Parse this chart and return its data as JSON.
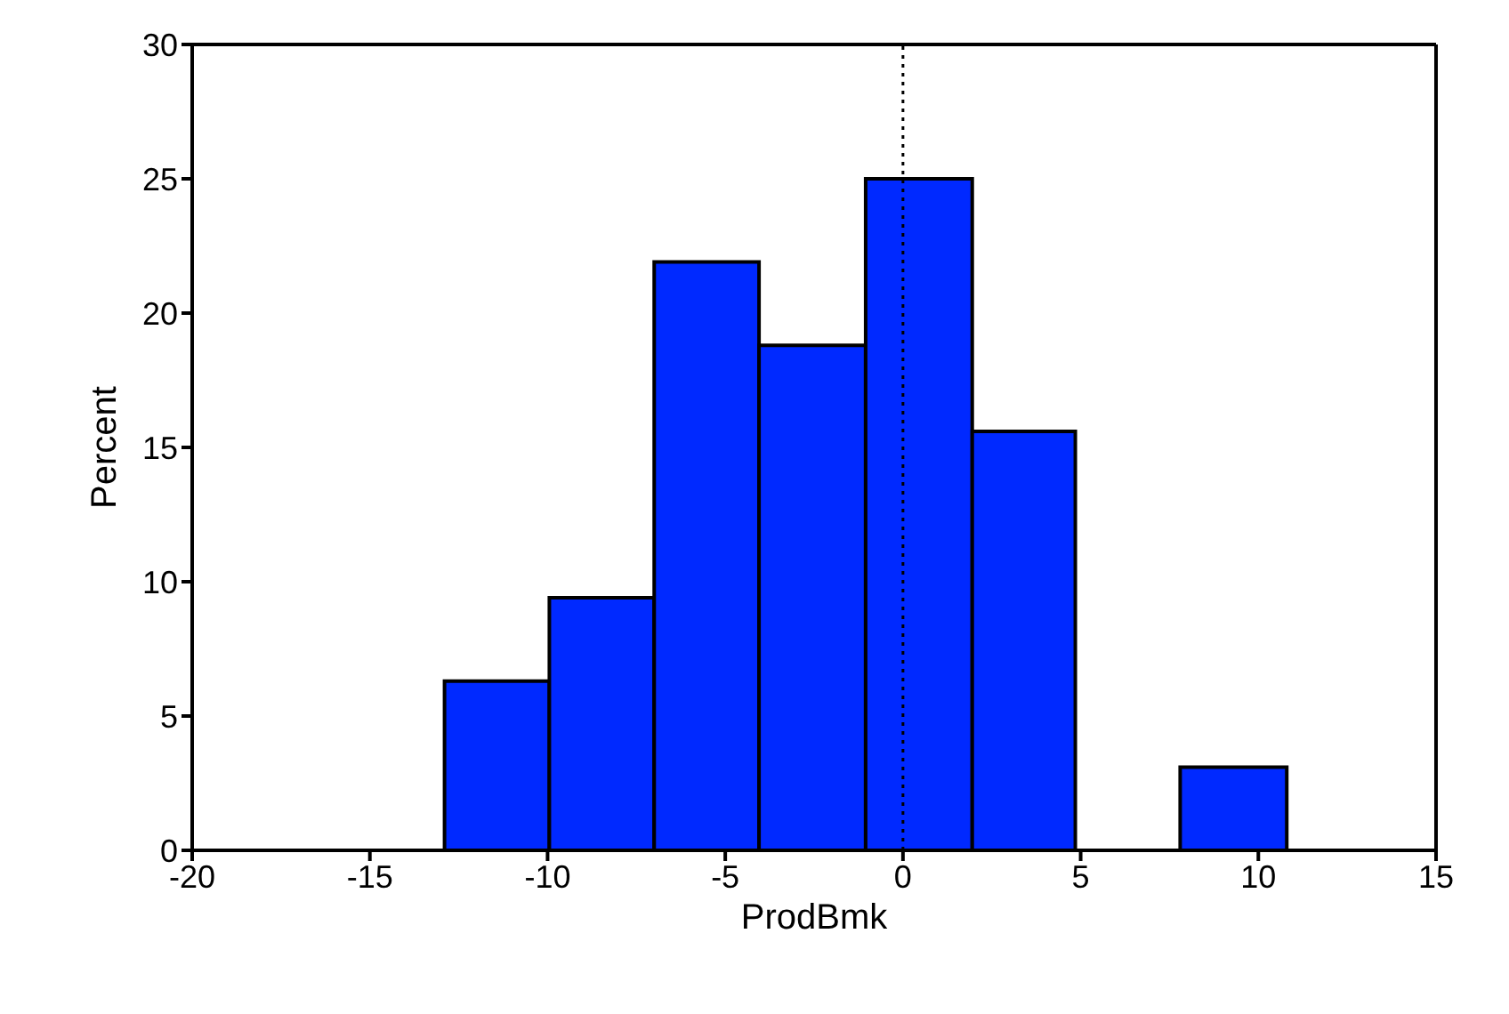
{
  "chart_data": {
    "type": "histogram",
    "xlabel": "ProdBmk",
    "ylabel": "Percent",
    "bins": [
      -12.9,
      -9.95,
      -7,
      -4.05,
      -1.05,
      1.95,
      4.85,
      7.8,
      10.8
    ],
    "values": [
      6.3,
      9.4,
      21.9,
      18.8,
      25,
      15.6,
      0,
      3.1
    ],
    "color": "#0029ff",
    "xlim": [
      -20,
      15
    ],
    "xticks": [
      -20,
      -15,
      -10,
      -5,
      0,
      5,
      10,
      15
    ],
    "ylim": [
      0,
      30
    ],
    "yticks": [
      0,
      5,
      10,
      15,
      20,
      25,
      30
    ],
    "ref_lines": [
      {
        "axis": "x",
        "value": 0,
        "line_style": "dotted",
        "color": "#000000"
      }
    ],
    "grid": false
  }
}
